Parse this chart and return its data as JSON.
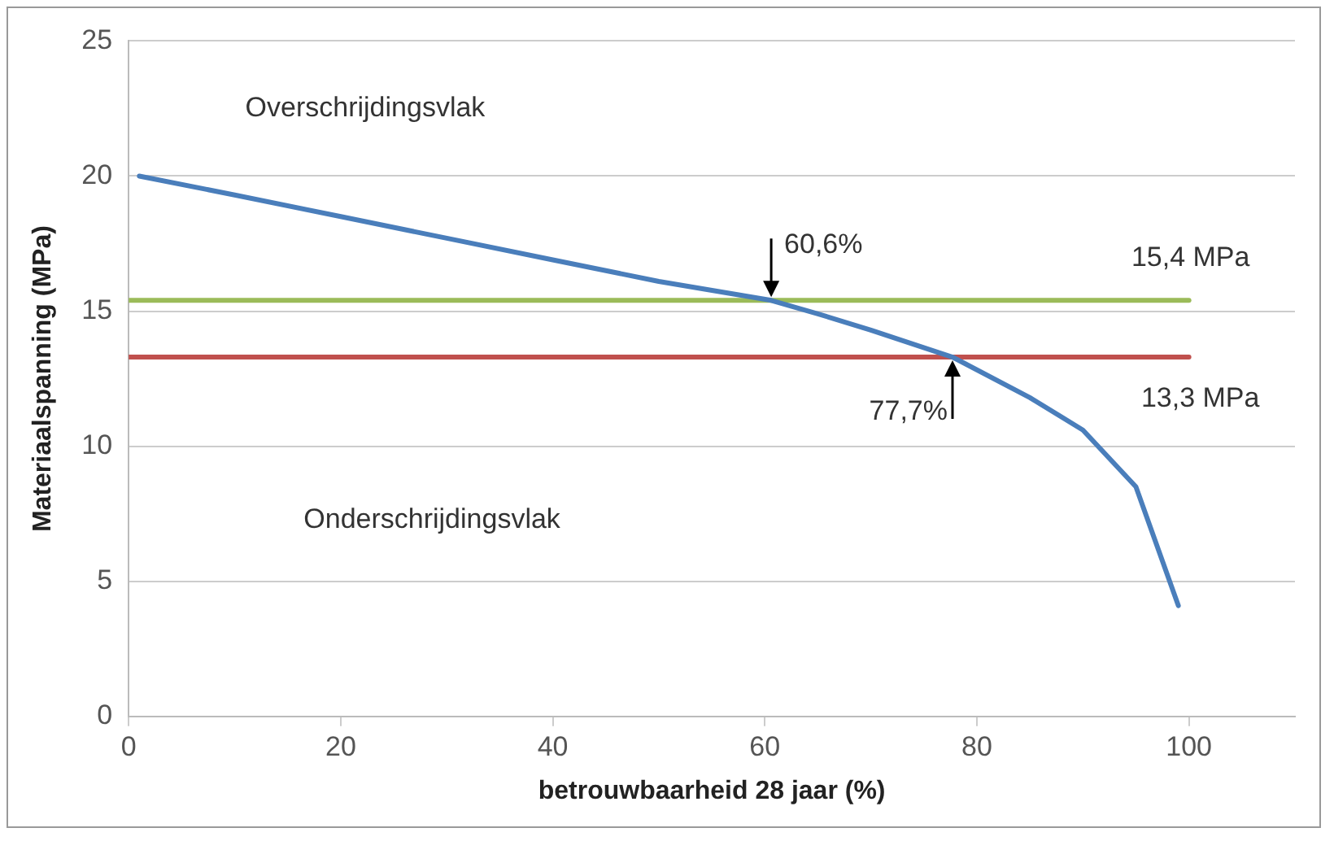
{
  "chart_data": {
    "type": "line",
    "xlabel": "betrouwbaarheid 28 jaar (%)",
    "ylabel": "Materiaalspanning (MPa)",
    "xlim": [
      0,
      110
    ],
    "xticks": [
      0,
      20,
      40,
      60,
      80,
      100
    ],
    "ylim": [
      0,
      25
    ],
    "yticks": [
      0,
      5,
      10,
      15,
      20,
      25
    ],
    "grid": "y",
    "legend": false,
    "marker": "none",
    "line_style": "solid",
    "series": [
      {
        "color": "#4a7ebb",
        "x": [
          1,
          10,
          20,
          30,
          40,
          50,
          60.6,
          65,
          70,
          77.7,
          85,
          90,
          95,
          99
        ],
        "values": [
          20,
          19.3,
          18.5,
          17.7,
          16.9,
          16.1,
          15.4,
          14.9,
          14.3,
          13.3,
          11.8,
          10.6,
          8.5,
          4.1
        ]
      },
      {
        "name": "15,4 MPa",
        "color": "#9bbb59",
        "x": [
          0,
          100
        ],
        "values": [
          15.4,
          15.4
        ]
      },
      {
        "name": "13,3 MPa",
        "color": "#c0504d",
        "x": [
          0,
          100
        ],
        "values": [
          13.3,
          13.3
        ]
      }
    ],
    "annotations": [
      "Overschrijdingsvlak",
      "Onderschrijdingsvlak",
      {
        "text": "60,6%",
        "x": 60.6,
        "y": 15.4
      },
      {
        "text": "77,7%",
        "x": 77.7,
        "y": 13.3
      }
    ]
  }
}
